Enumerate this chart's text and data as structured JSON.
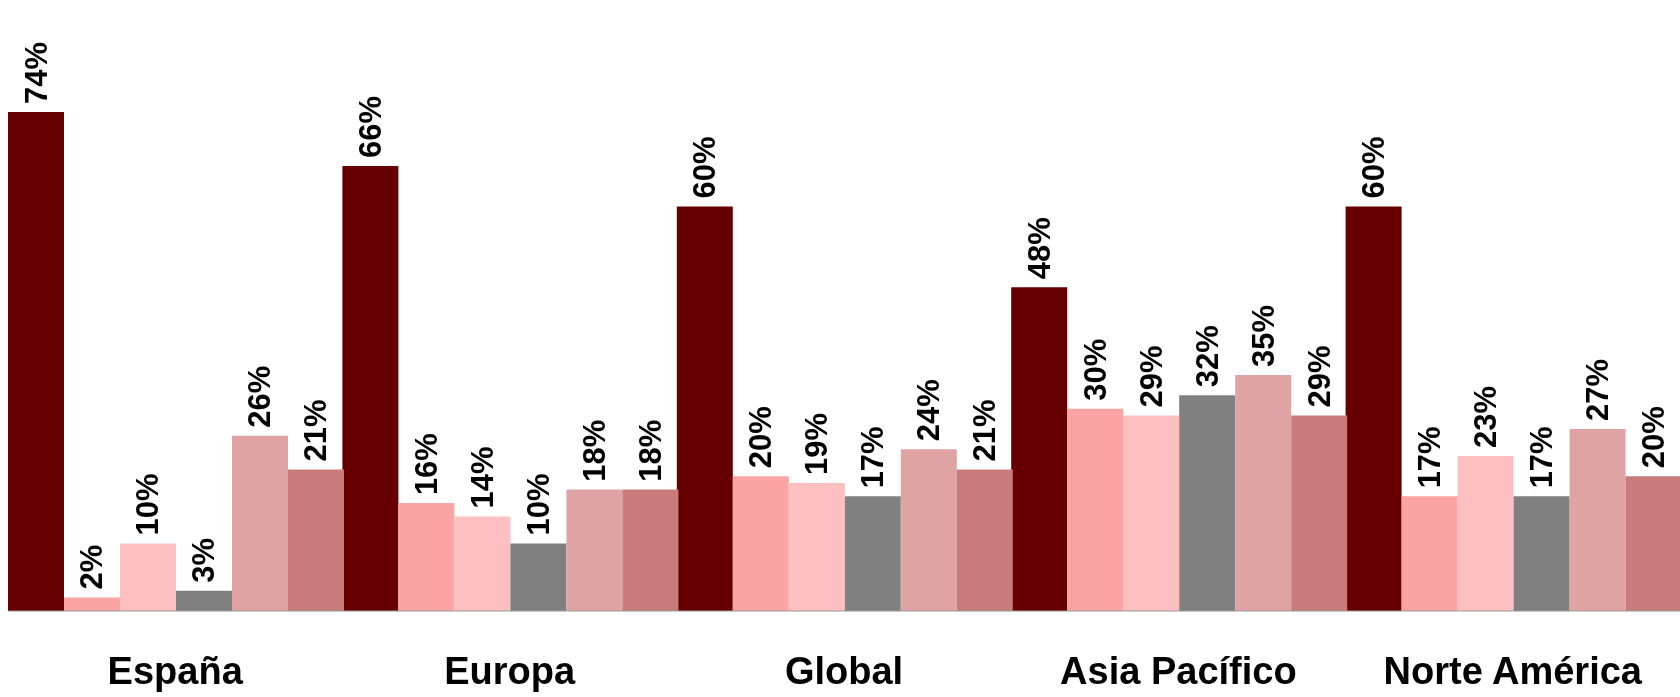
{
  "chart_data": {
    "type": "bar",
    "categories": [
      "España",
      "Europa",
      "Global",
      "Asia Pacífico",
      "Norte América"
    ],
    "series": [
      {
        "color": "#660000",
        "values": [
          74,
          66,
          60,
          48,
          60
        ],
        "value_labels": [
          "74%",
          "66%",
          "60%",
          "48%",
          "60%"
        ]
      },
      {
        "color": "#fca3a3",
        "values": [
          2,
          16,
          20,
          30,
          17
        ],
        "value_labels": [
          "2%",
          "16%",
          "20%",
          "30%",
          "17%"
        ]
      },
      {
        "color": "#fdbfbf",
        "values": [
          10,
          14,
          19,
          29,
          23
        ],
        "value_labels": [
          "10%",
          "14%",
          "19%",
          "29%",
          "23%"
        ]
      },
      {
        "color": "#808080",
        "values": [
          3,
          10,
          17,
          32,
          17
        ],
        "value_labels": [
          "3%",
          "10%",
          "17%",
          "32%",
          "17%"
        ]
      },
      {
        "color": "#e0a3a3",
        "values": [
          26,
          18,
          24,
          35,
          27
        ],
        "value_labels": [
          "26%",
          "18%",
          "24%",
          "35%",
          "27%"
        ]
      },
      {
        "color": "#c97b7b",
        "values": [
          21,
          18,
          21,
          29,
          20
        ],
        "value_labels": [
          "21%",
          "18%",
          "21%",
          "29%",
          "20%"
        ]
      }
    ],
    "grid": false,
    "legend": false
  }
}
